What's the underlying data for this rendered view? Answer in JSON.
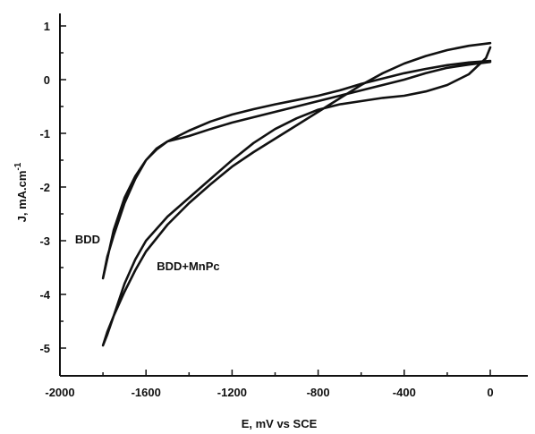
{
  "chart_data": {
    "type": "line",
    "xlabel": "E, mV vs SCE",
    "ylabel": "J, mA.cm",
    "ylabel_superscript": "-1",
    "xlim": [
      -2000,
      100
    ],
    "ylim": [
      -5.5,
      1.2
    ],
    "x_ticks": [
      -2000,
      -1600,
      -1200,
      -800,
      -400,
      0
    ],
    "y_ticks": [
      1,
      0,
      -1,
      -2,
      -3,
      -4,
      -5
    ],
    "grid": false,
    "series": [
      {
        "name": "BDD",
        "label_position": [
          -1930,
          -3.05
        ],
        "x": [
          0,
          -100,
          -200,
          -300,
          -400,
          -500,
          -600,
          -700,
          -800,
          -900,
          -1000,
          -1100,
          -1200,
          -1300,
          -1400,
          -1450,
          -1500,
          -1550,
          -1600,
          -1650,
          -1700,
          -1750,
          -1800,
          -1780,
          -1750,
          -1700,
          -1650,
          -1600,
          -1550,
          -1500,
          -1450,
          -1400,
          -1300,
          -1200,
          -1100,
          -1000,
          -900,
          -800,
          -700,
          -600,
          -500,
          -400,
          -300,
          -200,
          -100,
          0
        ],
        "y": [
          0.35,
          0.32,
          0.27,
          0.2,
          0.12,
          0.02,
          -0.08,
          -0.2,
          -0.3,
          -0.38,
          -0.46,
          -0.55,
          -0.65,
          -0.78,
          -0.95,
          -1.05,
          -1.15,
          -1.3,
          -1.5,
          -1.8,
          -2.2,
          -2.8,
          -3.7,
          -3.3,
          -2.9,
          -2.3,
          -1.85,
          -1.5,
          -1.28,
          -1.15,
          -1.1,
          -1.05,
          -0.92,
          -0.8,
          -0.7,
          -0.6,
          -0.5,
          -0.4,
          -0.3,
          -0.2,
          -0.1,
          0.0,
          0.12,
          0.22,
          0.28,
          0.33
        ]
      },
      {
        "name": "BDD+MnPc",
        "label_position": [
          -1550,
          -3.55
        ],
        "x": [
          0,
          -100,
          -200,
          -300,
          -400,
          -500,
          -600,
          -700,
          -800,
          -900,
          -1000,
          -1100,
          -1200,
          -1300,
          -1400,
          -1500,
          -1600,
          -1650,
          -1700,
          -1750,
          -1780,
          -1800,
          -1780,
          -1750,
          -1700,
          -1650,
          -1600,
          -1500,
          -1400,
          -1300,
          -1200,
          -1100,
          -1000,
          -900,
          -800,
          -700,
          -600,
          -500,
          -400,
          -300,
          -200,
          -100,
          -20,
          0
        ],
        "y": [
          0.68,
          0.63,
          0.55,
          0.44,
          0.3,
          0.12,
          -0.1,
          -0.35,
          -0.6,
          -0.85,
          -1.1,
          -1.35,
          -1.62,
          -1.95,
          -2.3,
          -2.7,
          -3.2,
          -3.55,
          -3.95,
          -4.4,
          -4.75,
          -4.95,
          -4.7,
          -4.4,
          -3.8,
          -3.35,
          -3.0,
          -2.55,
          -2.2,
          -1.85,
          -1.5,
          -1.18,
          -0.92,
          -0.72,
          -0.56,
          -0.46,
          -0.4,
          -0.34,
          -0.3,
          -0.22,
          -0.1,
          0.1,
          0.4,
          0.6
        ]
      }
    ]
  }
}
